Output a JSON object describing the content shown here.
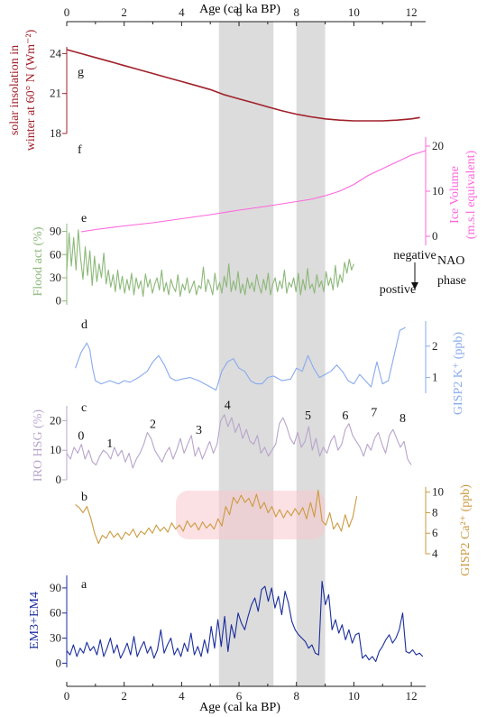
{
  "chart_data": {
    "type": "line",
    "x_axis": {
      "label": "Age (cal ka BP)",
      "range": [
        0,
        12.5
      ],
      "ticks": [
        0,
        2,
        4,
        6,
        8,
        10,
        12
      ],
      "shown_top_and_bottom": true
    },
    "shaded_intervals": [
      [
        5.3,
        7.2
      ],
      [
        8.0,
        9.0
      ]
    ],
    "shade_color": "#dcdcdc",
    "panels": [
      {
        "id": "g",
        "letter": "g",
        "ylabel_line1": "solar insolation in",
        "ylabel_line2": "winter at 60° N (Wm⁻²)",
        "y_side": "left",
        "ylim": [
          18,
          24.5
        ],
        "yticks": [
          18,
          21,
          24
        ],
        "color": "#a0202a",
        "x": [
          0,
          0.5,
          1,
          1.5,
          2,
          2.5,
          3,
          3.5,
          4,
          4.5,
          5,
          5.5,
          6,
          6.5,
          7,
          7.5,
          8,
          8.5,
          9,
          9.5,
          10,
          10.5,
          11,
          11.5,
          12,
          12.3
        ],
        "y": [
          24.3,
          24.0,
          23.7,
          23.4,
          23.1,
          22.8,
          22.5,
          22.2,
          21.9,
          21.6,
          21.3,
          20.9,
          20.6,
          20.3,
          20.0,
          19.7,
          19.45,
          19.25,
          19.1,
          19.0,
          18.95,
          18.95,
          18.95,
          19.0,
          19.1,
          19.2
        ]
      },
      {
        "id": "f",
        "letter": "f",
        "ylabel_line1": "Ice Volume",
        "ylabel_line2": "(m.s.l equivalent)",
        "y_side": "right",
        "ylim": [
          -2,
          22
        ],
        "yticks": [
          0,
          10,
          20
        ],
        "color": "#ff66dd",
        "x": [
          0.5,
          1,
          2,
          3,
          4,
          5,
          6,
          7,
          8,
          8.5,
          9,
          9.5,
          10,
          10.5,
          11,
          11.5,
          12,
          12.5
        ],
        "y": [
          1.0,
          1.5,
          2.3,
          3.0,
          3.9,
          4.8,
          5.8,
          6.7,
          7.7,
          8.2,
          9.0,
          10.0,
          11.5,
          13.5,
          15.0,
          16.5,
          18.0,
          19.0
        ]
      },
      {
        "id": "e",
        "letter": "e",
        "ylabel_line1": "Flood act (%)",
        "y_side": "left",
        "ylim": [
          -5,
          100
        ],
        "yticks": [
          0,
          30,
          60,
          90
        ],
        "color": "#8cb878",
        "x_start": 0,
        "x_end": 10,
        "y": [
          38,
          88,
          45,
          82,
          40,
          92,
          55,
          28,
          70,
          33,
          65,
          20,
          58,
          25,
          48,
          30,
          62,
          22,
          40,
          18,
          34,
          12,
          40,
          15,
          32,
          10,
          28,
          14,
          36,
          8,
          30,
          16,
          26,
          6,
          35,
          18,
          28,
          10,
          22,
          30,
          14,
          40,
          12,
          24,
          8,
          28,
          18,
          12,
          34,
          6,
          22,
          14,
          30,
          10,
          18,
          26,
          8,
          20,
          16,
          44,
          12,
          28,
          20,
          8,
          36,
          14,
          24,
          10,
          32,
          18,
          48,
          12,
          26,
          14,
          38,
          10,
          22,
          8,
          30,
          16,
          24,
          12,
          34,
          20,
          10,
          28,
          14,
          36,
          8,
          22,
          30,
          12,
          26,
          16,
          40,
          10,
          24,
          18,
          30,
          12,
          36,
          8,
          28,
          14,
          42,
          16,
          22,
          10,
          34,
          18,
          26,
          12,
          38,
          20,
          30,
          14,
          46,
          18,
          34,
          24,
          50,
          36,
          54,
          40,
          48
        ]
      },
      {
        "id": "d",
        "letter": "d",
        "ylabel_line1": "GISP2 K⁺  (ppb)",
        "y_side": "right",
        "ylim": [
          0.5,
          2.8
        ],
        "yticks": [
          1,
          2
        ],
        "color": "#88aaee",
        "x": [
          0.3,
          0.5,
          0.7,
          0.8,
          0.9,
          1.0,
          1.2,
          1.5,
          1.8,
          2.0,
          2.2,
          2.5,
          2.8,
          3.0,
          3.2,
          3.4,
          3.6,
          3.8,
          4.0,
          4.3,
          4.6,
          4.8,
          5.0,
          5.2,
          5.4,
          5.6,
          5.8,
          6.0,
          6.2,
          6.4,
          6.6,
          6.8,
          7.0,
          7.2,
          7.5,
          7.8,
          8.0,
          8.2,
          8.4,
          8.6,
          8.8,
          9.0,
          9.2,
          9.4,
          9.6,
          9.8,
          10.0,
          10.2,
          10.4,
          10.6,
          10.8,
          11.0,
          11.2,
          11.4,
          11.6,
          11.8
        ],
        "y": [
          1.3,
          1.8,
          2.1,
          1.9,
          1.3,
          0.9,
          0.8,
          0.9,
          0.8,
          0.9,
          0.85,
          1.0,
          1.2,
          1.5,
          1.7,
          1.4,
          1.0,
          0.9,
          0.95,
          1.0,
          0.9,
          0.8,
          0.7,
          0.6,
          1.2,
          1.5,
          1.6,
          1.3,
          1.2,
          0.9,
          0.8,
          0.8,
          1.0,
          1.05,
          0.9,
          0.95,
          1.3,
          1.2,
          1.7,
          1.3,
          1.0,
          1.1,
          1.2,
          1.4,
          1.2,
          0.9,
          0.8,
          1.1,
          0.9,
          0.7,
          1.5,
          0.8,
          0.9,
          1.7,
          2.5,
          2.6
        ]
      },
      {
        "id": "c",
        "letter": "c",
        "ylabel_line1": "IRO HSG (%)",
        "y_side": "left",
        "ylim": [
          0,
          25
        ],
        "yticks": [
          0,
          10,
          20
        ],
        "color": "#b8a4cc",
        "x_start": 0,
        "x_end": 12,
        "y": [
          9,
          7,
          11,
          9,
          12,
          7,
          10,
          6,
          5,
          8,
          10,
          9,
          7,
          11,
          8,
          10,
          6,
          9,
          4,
          7,
          9,
          12,
          16,
          14,
          10,
          8,
          6,
          9,
          11,
          7,
          10,
          14,
          9,
          12,
          15,
          8,
          11,
          7,
          10,
          13,
          9,
          12,
          20,
          22,
          18,
          21,
          16,
          19,
          14,
          17,
          13,
          12,
          15,
          9,
          11,
          8,
          10,
          12,
          19,
          21,
          18,
          14,
          12,
          16,
          11,
          13,
          18,
          10,
          14,
          8,
          11,
          9,
          13,
          15,
          10,
          12,
          17,
          19,
          15,
          13,
          11,
          8,
          12,
          10,
          14,
          16,
          12,
          9,
          15,
          17,
          14,
          11,
          13,
          7,
          5
        ],
        "peak_labels": [
          {
            "text": "0",
            "x": 0.5,
            "y": 13.5
          },
          {
            "text": "1",
            "x": 1.5,
            "y": 11
          },
          {
            "text": "2",
            "x": 3.0,
            "y": 17.5
          },
          {
            "text": "3",
            "x": 4.6,
            "y": 15.5
          },
          {
            "text": "4",
            "x": 5.6,
            "y": 24
          },
          {
            "text": "5",
            "x": 8.4,
            "y": 20.5
          },
          {
            "text": "6",
            "x": 9.7,
            "y": 20.5
          },
          {
            "text": "7",
            "x": 10.7,
            "y": 21.5
          },
          {
            "text": "8",
            "x": 11.7,
            "y": 19.5
          }
        ]
      },
      {
        "id": "b",
        "letter": "b",
        "ylabel_line1": "GISP2 Ca²⁺ (ppb)",
        "y_side": "right",
        "ylim": [
          4,
          10.5
        ],
        "yticks": [
          4,
          6,
          8,
          10
        ],
        "color": "#cc9a40",
        "x_start": 0.3,
        "x_end": 10.1,
        "y": [
          8.8,
          8.5,
          8.0,
          8.6,
          7.5,
          6.0,
          5.0,
          5.8,
          5.5,
          6.2,
          5.6,
          6.0,
          5.4,
          6.1,
          5.8,
          6.4,
          5.6,
          6.2,
          5.9,
          6.5,
          6.0,
          6.8,
          6.2,
          6.6,
          6.1,
          7.0,
          6.4,
          6.8,
          6.2,
          7.2,
          6.6,
          7.0,
          6.3,
          7.1,
          6.5,
          6.9,
          6.4,
          7.4,
          6.7,
          8.6,
          7.8,
          9.5,
          8.9,
          9.7,
          9.0,
          9.4,
          8.6,
          9.8,
          8.4,
          9.0,
          8.0,
          8.6,
          7.6,
          8.3,
          7.5,
          8.2,
          7.7,
          8.4,
          7.8,
          8.5,
          7.4,
          9.0,
          7.6,
          10.2,
          7.2,
          6.8,
          8.0,
          6.4,
          7.0,
          6.2,
          7.8,
          6.6,
          7.6,
          9.6
        ],
        "pink_glow_range": [
          3.8,
          9.0
        ]
      },
      {
        "id": "a",
        "letter": "a",
        "ylabel_line1": "EM3+EM4",
        "y_side": "left",
        "ylim": [
          -5,
          105
        ],
        "yticks": [
          0,
          30,
          60,
          90
        ],
        "color": "#1a2d9c",
        "x_start": 0,
        "x_end": 12.4,
        "y": [
          15,
          10,
          22,
          8,
          18,
          12,
          25,
          15,
          20,
          10,
          28,
          8,
          18,
          30,
          12,
          22,
          6,
          14,
          24,
          10,
          32,
          8,
          18,
          26,
          12,
          20,
          6,
          16,
          40,
          12,
          22,
          30,
          10,
          18,
          8,
          24,
          14,
          36,
          10,
          20,
          8,
          28,
          12,
          44,
          18,
          52,
          20,
          56,
          14,
          46,
          30,
          60,
          48,
          40,
          56,
          70,
          78,
          62,
          88,
          92,
          74,
          90,
          66,
          80,
          58,
          86,
          72,
          50,
          40,
          34,
          30,
          26,
          18,
          22,
          12,
          10,
          98,
          70,
          82,
          40,
          52,
          36,
          46,
          28,
          40,
          24,
          34,
          36,
          6,
          10,
          4,
          8,
          2,
          14,
          20,
          28,
          34,
          24,
          30,
          40,
          60,
          14,
          12,
          16,
          10,
          12,
          8
        ]
      }
    ],
    "nao_annotation": {
      "top_label": "negative",
      "bottom_label": "postive",
      "side_label_line1": "NAO",
      "side_label_line2": "phase"
    }
  }
}
